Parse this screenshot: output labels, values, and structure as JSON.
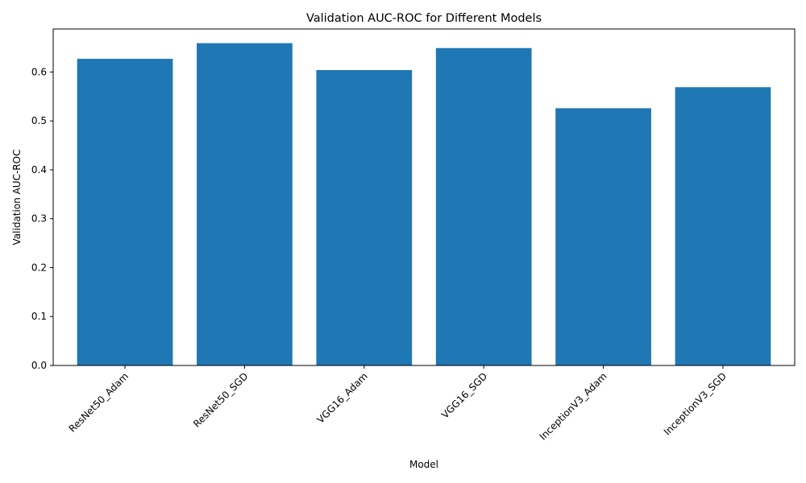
{
  "chart_data": {
    "type": "bar",
    "title": "Validation AUC-ROC for Different Models",
    "xlabel": "Model",
    "ylabel": "Validation AUC-ROC",
    "categories": [
      "ResNet50_Adam",
      "ResNet50_SGD",
      "VGG16_Adam",
      "VGG16_SGD",
      "InceptionV3_Adam",
      "InceptionV3_SGD"
    ],
    "values": [
      0.627,
      0.659,
      0.604,
      0.649,
      0.526,
      0.569
    ],
    "ylim": [
      0,
      0.688
    ],
    "yticks": [
      0.0,
      0.1,
      0.2,
      0.3,
      0.4,
      0.5,
      0.6
    ],
    "ytick_labels": [
      "0.0",
      "0.1",
      "0.2",
      "0.3",
      "0.4",
      "0.5",
      "0.6"
    ],
    "bar_color": "#1f77b4",
    "grid": false,
    "legend": "none"
  }
}
